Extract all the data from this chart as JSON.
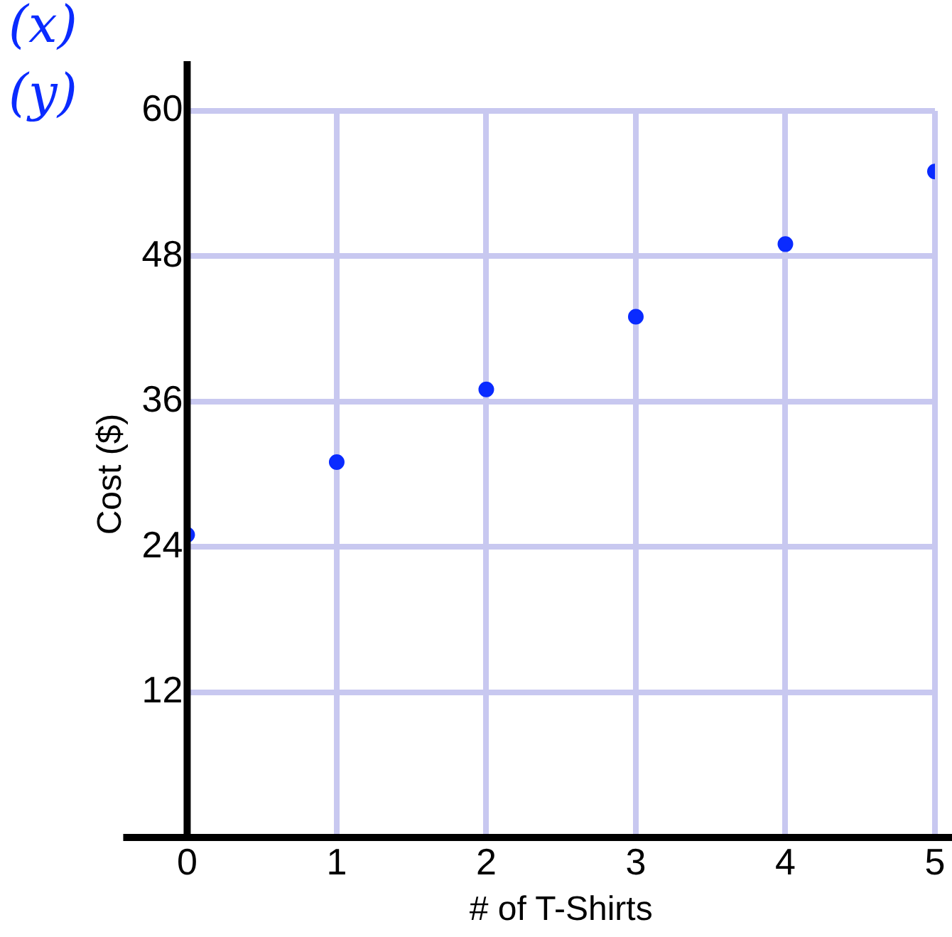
{
  "chart_data": {
    "type": "scatter",
    "xlabel": "# of T-Shirts",
    "ylabel": "Cost ($)",
    "x": [
      0,
      1,
      2,
      3,
      4,
      5
    ],
    "series": [
      {
        "color": "#0a2bff",
        "values": [
          25,
          31,
          37,
          43,
          49,
          55
        ]
      }
    ],
    "xlim": [
      0,
      5
    ],
    "xticks": [
      0,
      1,
      2,
      3,
      4,
      5
    ],
    "ylim": [
      0,
      60
    ],
    "yticks": [
      12,
      24,
      36,
      48,
      60
    ],
    "grid": true,
    "legend": false,
    "marker": "circle",
    "annotations": [
      "(x)",
      "(y)"
    ]
  }
}
